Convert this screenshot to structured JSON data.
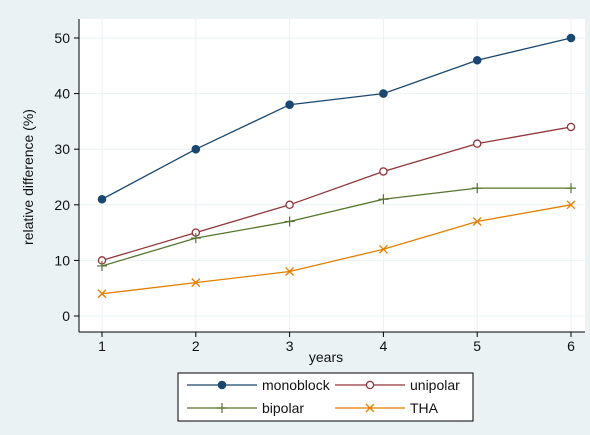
{
  "chart_data": {
    "type": "line",
    "title": "",
    "xlabel": "years",
    "ylabel": "relative difference (%)",
    "x": [
      1,
      2,
      3,
      4,
      5,
      6
    ],
    "xlim": [
      1,
      6
    ],
    "ylim": [
      0,
      50
    ],
    "yticks": [
      0,
      10,
      20,
      30,
      40,
      50
    ],
    "xticks": [
      1,
      2,
      3,
      4,
      5,
      6
    ],
    "grid": true,
    "legend_position": "bottom",
    "series": [
      {
        "name": "monoblock",
        "values": [
          21,
          30,
          38,
          40,
          46,
          50
        ],
        "color": "#1a476f",
        "marker": "filled-circle"
      },
      {
        "name": "unipolar",
        "values": [
          10,
          15,
          20,
          26,
          31,
          34
        ],
        "color": "#90353b",
        "marker": "hollow-circle"
      },
      {
        "name": "bipolar",
        "values": [
          9,
          14,
          17,
          21,
          23,
          23
        ],
        "color": "#55752f",
        "marker": "plus"
      },
      {
        "name": "THA",
        "values": [
          4,
          6,
          8,
          12,
          17,
          20
        ],
        "color": "#e37e00",
        "marker": "x"
      }
    ]
  },
  "colors": {
    "outer_background": "#eaf2f3",
    "plot_background": "#ffffff",
    "grid": "#eaf2f3",
    "axis": "#000000"
  }
}
